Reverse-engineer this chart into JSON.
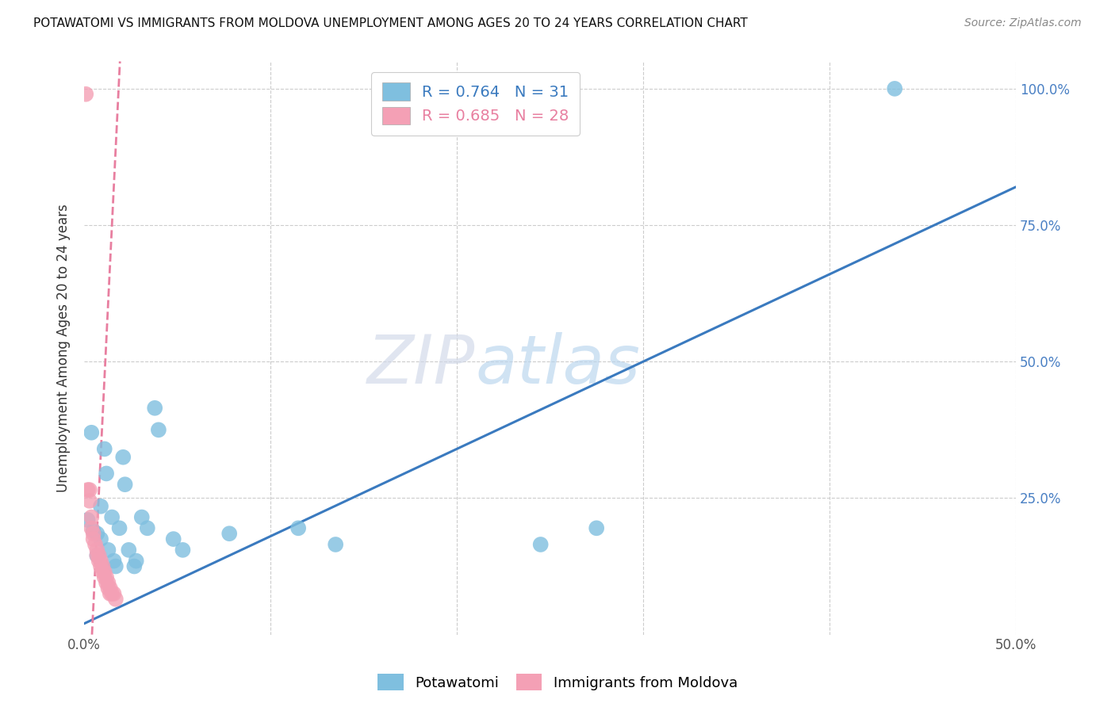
{
  "title": "POTAWATOMI VS IMMIGRANTS FROM MOLDOVA UNEMPLOYMENT AMONG AGES 20 TO 24 YEARS CORRELATION CHART",
  "source": "Source: ZipAtlas.com",
  "ylabel": "Unemployment Among Ages 20 to 24 years",
  "xlim": [
    0,
    0.5
  ],
  "ylim": [
    0,
    1.05
  ],
  "blue_color": "#7fbfdf",
  "pink_color": "#f4a0b5",
  "blue_line_color": "#3a7abf",
  "pink_line_color": "#e87fa0",
  "blue_line": [
    0.0,
    0.02,
    0.5,
    0.82
  ],
  "pink_line": [
    0.0,
    -0.3,
    0.02,
    1.1
  ],
  "blue_points": [
    [
      0.002,
      0.21
    ],
    [
      0.004,
      0.37
    ],
    [
      0.005,
      0.19
    ],
    [
      0.007,
      0.185
    ],
    [
      0.007,
      0.145
    ],
    [
      0.009,
      0.235
    ],
    [
      0.009,
      0.175
    ],
    [
      0.011,
      0.34
    ],
    [
      0.012,
      0.295
    ],
    [
      0.013,
      0.155
    ],
    [
      0.015,
      0.215
    ],
    [
      0.016,
      0.135
    ],
    [
      0.017,
      0.125
    ],
    [
      0.019,
      0.195
    ],
    [
      0.021,
      0.325
    ],
    [
      0.022,
      0.275
    ],
    [
      0.024,
      0.155
    ],
    [
      0.027,
      0.125
    ],
    [
      0.028,
      0.135
    ],
    [
      0.031,
      0.215
    ],
    [
      0.034,
      0.195
    ],
    [
      0.038,
      0.415
    ],
    [
      0.04,
      0.375
    ],
    [
      0.048,
      0.175
    ],
    [
      0.053,
      0.155
    ],
    [
      0.078,
      0.185
    ],
    [
      0.115,
      0.195
    ],
    [
      0.135,
      0.165
    ],
    [
      0.245,
      0.165
    ],
    [
      0.275,
      0.195
    ],
    [
      0.435,
      1.0
    ]
  ],
  "pink_points": [
    [
      0.001,
      0.99
    ],
    [
      0.002,
      0.265
    ],
    [
      0.003,
      0.265
    ],
    [
      0.003,
      0.245
    ],
    [
      0.004,
      0.215
    ],
    [
      0.004,
      0.195
    ],
    [
      0.005,
      0.185
    ],
    [
      0.005,
      0.175
    ],
    [
      0.006,
      0.165
    ],
    [
      0.007,
      0.155
    ],
    [
      0.007,
      0.145
    ],
    [
      0.008,
      0.145
    ],
    [
      0.008,
      0.135
    ],
    [
      0.009,
      0.135
    ],
    [
      0.009,
      0.125
    ],
    [
      0.01,
      0.125
    ],
    [
      0.01,
      0.115
    ],
    [
      0.011,
      0.115
    ],
    [
      0.011,
      0.105
    ],
    [
      0.012,
      0.105
    ],
    [
      0.012,
      0.095
    ],
    [
      0.013,
      0.095
    ],
    [
      0.013,
      0.085
    ],
    [
      0.014,
      0.085
    ],
    [
      0.014,
      0.075
    ],
    [
      0.015,
      0.075
    ],
    [
      0.016,
      0.075
    ],
    [
      0.017,
      0.065
    ]
  ]
}
